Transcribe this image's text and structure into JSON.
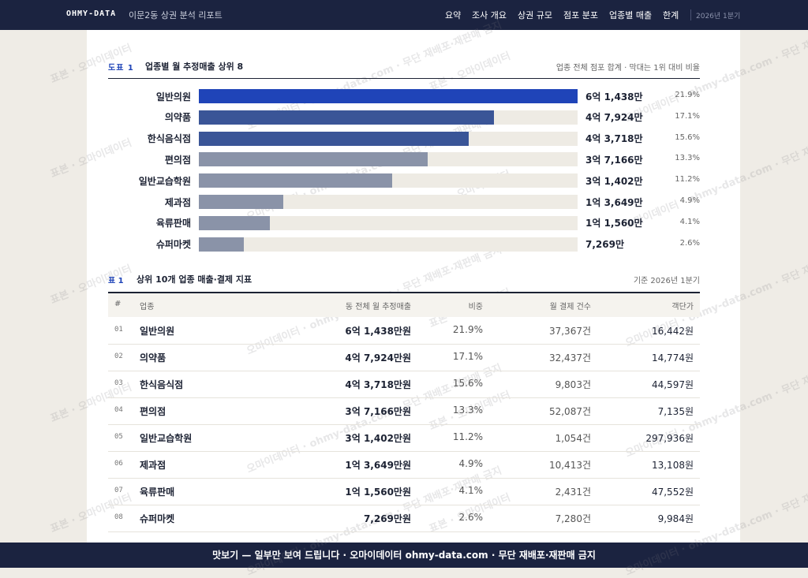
{
  "nav": {
    "brand": "OHMY-DATA",
    "title": "이문2동 상권 분석 리포트",
    "menu": [
      "요약",
      "조사 개요",
      "상권 규모",
      "점포 분포",
      "업종별 매출",
      "한계"
    ],
    "period": "2026년 1분기"
  },
  "figure": {
    "type": "bar",
    "tag": "도표 1",
    "title": "업종별 월 추정매출 상위 8",
    "note": "업종 전체 점포 합계 · 막대는 1위 대비 비율",
    "categories": [
      "일반의원",
      "의약품",
      "한식음식점",
      "편의점",
      "일반교습학원",
      "제과점",
      "육류판매",
      "슈퍼마켓"
    ],
    "values": [
      61438,
      47924,
      43718,
      37166,
      31402,
      13649,
      11560,
      7269
    ],
    "value_labels": [
      "6억 1,438만",
      "4억 7,924만",
      "4억 3,718만",
      "3억 7,166만",
      "3억 1,402만",
      "1억 3,649만",
      "1억 1,560만",
      "7,269만"
    ],
    "shares": [
      "21.9%",
      "17.1%",
      "15.6%",
      "13.3%",
      "11.2%",
      "4.9%",
      "4.1%",
      "2.6%"
    ],
    "colors": [
      "#1f44b8",
      "#3a5597",
      "#3a5597",
      "#8a93a8",
      "#8a93a8",
      "#8a93a8",
      "#8a93a8",
      "#8a93a8"
    ]
  },
  "table": {
    "tag": "표 1",
    "title": "상위 10개 업종 매출·결제 지표",
    "note": "기준 2026년 1분기",
    "columns": [
      "#",
      "업종",
      "동 전체 월 추정매출",
      "비중",
      "월 결제 건수",
      "객단가"
    ],
    "rows": [
      [
        "01",
        "일반의원",
        "6억 1,438만원",
        "21.9%",
        "37,367건",
        "16,442원"
      ],
      [
        "02",
        "의약품",
        "4억 7,924만원",
        "17.1%",
        "32,437건",
        "14,774원"
      ],
      [
        "03",
        "한식음식점",
        "4억 3,718만원",
        "15.6%",
        "9,803건",
        "44,597원"
      ],
      [
        "04",
        "편의점",
        "3억 7,166만원",
        "13.3%",
        "52,087건",
        "7,135원"
      ],
      [
        "05",
        "일반교습학원",
        "3억 1,402만원",
        "11.2%",
        "1,054건",
        "297,936원"
      ],
      [
        "06",
        "제과점",
        "1억 3,649만원",
        "4.9%",
        "10,413건",
        "13,108원"
      ],
      [
        "07",
        "육류판매",
        "1억 1,560만원",
        "4.1%",
        "2,431건",
        "47,552원"
      ],
      [
        "08",
        "슈퍼마켓",
        "7,269만원",
        "2.6%",
        "7,280건",
        "9,984원"
      ]
    ]
  },
  "watermarks": [
    "표본 · 오마이데이터",
    "오마이데이터 · ohmy-data.com · 무단 재배포·재판매 금지"
  ],
  "footer": "맛보기 — 일부만 보여 드립니다 · 오마이데이터 ohmy-data.com · 무단 재배포·재판매 금지"
}
